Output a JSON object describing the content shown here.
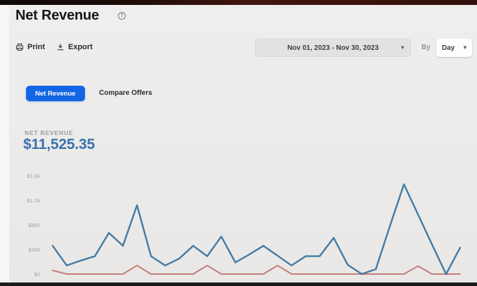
{
  "header": {
    "title": "Net Revenue",
    "info_glyph": "?"
  },
  "toolbar": {
    "print_label": "Print",
    "export_label": "Export",
    "date_range": "Nov 01, 2023  -  Nov 30, 2023",
    "by_label": "By",
    "interval_selected": "Day",
    "chevron": "▾"
  },
  "tabs": [
    {
      "label": "Net Revenue",
      "active": true
    },
    {
      "label": "Compare Offers",
      "active": false
    }
  ],
  "metric": {
    "label": "NET REVENUE",
    "value": "$11,525.35"
  },
  "colors": {
    "accent_blue": "#1266e3",
    "value_blue": "#3b72ad",
    "line_blue": "#33719f",
    "line_red": "#c07370",
    "page_bg": "#ecebe9"
  },
  "chart_data": {
    "type": "line",
    "title": "Net Revenue",
    "x_label": "Day of date range Nov 01, 2023 - Nov 30, 2023 (x tick labels not visible)",
    "x": [
      1,
      2,
      3,
      4,
      5,
      6,
      7,
      8,
      9,
      10,
      11,
      12,
      13,
      14,
      15,
      16,
      17,
      18,
      19,
      20,
      21,
      22,
      23,
      24,
      25,
      26,
      27,
      28,
      29,
      30
    ],
    "ylim": [
      0,
      1600
    ],
    "y_ticks": [
      {
        "label": "$1.6k",
        "value": 1600
      },
      {
        "label": "$1.2k",
        "value": 1200
      },
      {
        "label": "$800",
        "value": 800
      },
      {
        "label": "$400",
        "value": 400
      },
      {
        "label": "$0",
        "value": 0
      }
    ],
    "grid": false,
    "legend": "none",
    "series": [
      {
        "id": "net-revenue",
        "name": "Net Revenue (blue line)",
        "color": "#33719f",
        "values": [
          460,
          140,
          220,
          290,
          670,
          460,
          1120,
          290,
          140,
          250,
          460,
          290,
          610,
          190,
          320,
          460,
          300,
          140,
          290,
          290,
          590,
          150,
          0,
          80,
          780,
          1460,
          970,
          480,
          0,
          430
        ]
      },
      {
        "id": "secondary",
        "name": "Unlabeled secondary (red line)",
        "color": "#c07370",
        "values": [
          60,
          0,
          0,
          0,
          0,
          0,
          140,
          0,
          0,
          0,
          0,
          140,
          0,
          0,
          0,
          0,
          140,
          0,
          0,
          0,
          0,
          0,
          0,
          0,
          0,
          0,
          130,
          0,
          0,
          0
        ]
      }
    ]
  }
}
